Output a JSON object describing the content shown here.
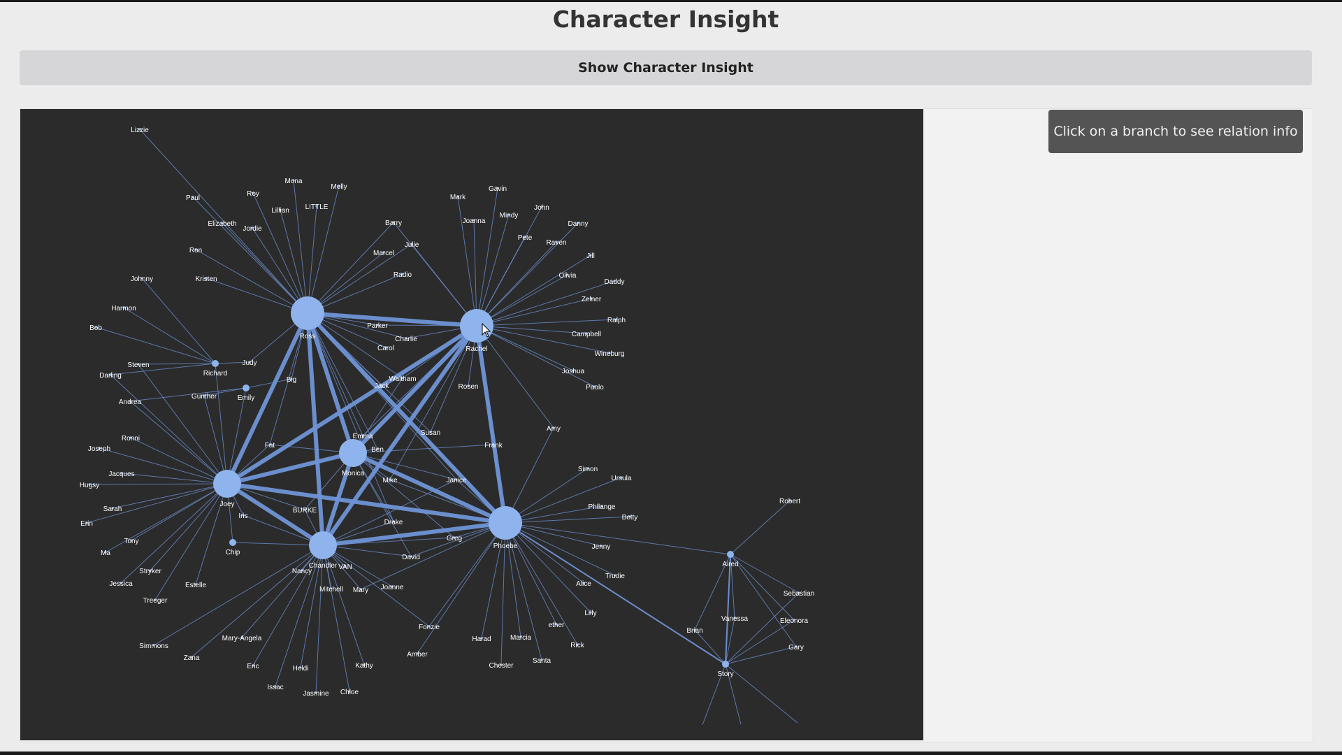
{
  "page": {
    "title": "Character Insight",
    "button_label": "Show Character Insight",
    "tooltip_text": "Click on a branch to see relation info"
  },
  "colors": {
    "background": "#ececec",
    "graph_background": "#2b2b2b",
    "node": "#8fb3ec",
    "edge": "#6f93d6",
    "label": "#ffffff"
  },
  "graph": {
    "nodes": [
      {
        "id": "Ross",
        "weight": 5
      },
      {
        "id": "Rachel",
        "weight": 5
      },
      {
        "id": "Monica",
        "weight": 4
      },
      {
        "id": "Joey",
        "weight": 4
      },
      {
        "id": "Chandler",
        "weight": 4
      },
      {
        "id": "Phoebe",
        "weight": 5
      },
      {
        "id": "Richard",
        "weight": 1
      },
      {
        "id": "Emily",
        "weight": 1
      },
      {
        "id": "Chip",
        "weight": 1
      },
      {
        "id": "Aired",
        "weight": 1
      },
      {
        "id": "Story",
        "weight": 1
      },
      {
        "id": "Lizzie"
      },
      {
        "id": "Paul"
      },
      {
        "id": "Roy"
      },
      {
        "id": "Mona"
      },
      {
        "id": "Molly"
      },
      {
        "id": "Lillian"
      },
      {
        "id": "LITTLE"
      },
      {
        "id": "Elizabeth"
      },
      {
        "id": "Jordie"
      },
      {
        "id": "Ron"
      },
      {
        "id": "Kristen"
      },
      {
        "id": "Johnny"
      },
      {
        "id": "Harmon"
      },
      {
        "id": "Bob"
      },
      {
        "id": "Steven"
      },
      {
        "id": "Darling"
      },
      {
        "id": "Judy"
      },
      {
        "id": "Big"
      },
      {
        "id": "Gunther"
      },
      {
        "id": "Andrea"
      },
      {
        "id": "Barry"
      },
      {
        "id": "Julie"
      },
      {
        "id": "Marcel"
      },
      {
        "id": "Radio"
      },
      {
        "id": "Parker"
      },
      {
        "id": "Charlie"
      },
      {
        "id": "Carol"
      },
      {
        "id": "Waltham"
      },
      {
        "id": "Jack"
      },
      {
        "id": "Mark"
      },
      {
        "id": "Gavin"
      },
      {
        "id": "Joanna"
      },
      {
        "id": "Mindy"
      },
      {
        "id": "John"
      },
      {
        "id": "Danny"
      },
      {
        "id": "Pete"
      },
      {
        "id": "Raven"
      },
      {
        "id": "Jill"
      },
      {
        "id": "Olivia"
      },
      {
        "id": "Daddy"
      },
      {
        "id": "Zelner"
      },
      {
        "id": "Ralph"
      },
      {
        "id": "Campbell"
      },
      {
        "id": "Wineburg"
      },
      {
        "id": "Joshua"
      },
      {
        "id": "Paolo"
      },
      {
        "id": "Rosen"
      },
      {
        "id": "Amy"
      },
      {
        "id": "Fat"
      },
      {
        "id": "Emma"
      },
      {
        "id": "Ben"
      },
      {
        "id": "Susan"
      },
      {
        "id": "Frank"
      },
      {
        "id": "Mike"
      },
      {
        "id": "Janice"
      },
      {
        "id": "Ronni"
      },
      {
        "id": "Joseph"
      },
      {
        "id": "Jacques"
      },
      {
        "id": "Hugsy"
      },
      {
        "id": "Sarah"
      },
      {
        "id": "Erin"
      },
      {
        "id": "Tony"
      },
      {
        "id": "Ma"
      },
      {
        "id": "Iris"
      },
      {
        "id": "BURKE"
      },
      {
        "id": "Drake"
      },
      {
        "id": "Greg"
      },
      {
        "id": "David"
      },
      {
        "id": "Stryker"
      },
      {
        "id": "Jessica"
      },
      {
        "id": "Estelle"
      },
      {
        "id": "Treeger"
      },
      {
        "id": "Nancy"
      },
      {
        "id": "VAN"
      },
      {
        "id": "Mitchell"
      },
      {
        "id": "Mary"
      },
      {
        "id": "Joanne"
      },
      {
        "id": "Simmons"
      },
      {
        "id": "Zana"
      },
      {
        "id": "Mary-Angela"
      },
      {
        "id": "Eric"
      },
      {
        "id": "Heldi"
      },
      {
        "id": "Kathy"
      },
      {
        "id": "Issac"
      },
      {
        "id": "Jasmine"
      },
      {
        "id": "Chloe"
      },
      {
        "id": "Fonzie"
      },
      {
        "id": "Amber"
      },
      {
        "id": "Harad"
      },
      {
        "id": "Marcia"
      },
      {
        "id": "Chester"
      },
      {
        "id": "Santa"
      },
      {
        "id": "ether"
      },
      {
        "id": "Rick"
      },
      {
        "id": "Lilly"
      },
      {
        "id": "Alice"
      },
      {
        "id": "Trudie"
      },
      {
        "id": "Jenny"
      },
      {
        "id": "Simon"
      },
      {
        "id": "Ursula"
      },
      {
        "id": "Phllange"
      },
      {
        "id": "Betty"
      },
      {
        "id": "Robert"
      },
      {
        "id": "Sebastian"
      },
      {
        "id": "Vanessa"
      },
      {
        "id": "Eleonora"
      },
      {
        "id": "Brian"
      },
      {
        "id": "Gary"
      }
    ],
    "strong_edges": [
      [
        "Ross",
        "Rachel"
      ],
      [
        "Ross",
        "Monica"
      ],
      [
        "Ross",
        "Joey"
      ],
      [
        "Ross",
        "Chandler"
      ],
      [
        "Ross",
        "Phoebe"
      ],
      [
        "Rachel",
        "Monica"
      ],
      [
        "Rachel",
        "Joey"
      ],
      [
        "Rachel",
        "Chandler"
      ],
      [
        "Rachel",
        "Phoebe"
      ],
      [
        "Monica",
        "Joey"
      ],
      [
        "Monica",
        "Chandler"
      ],
      [
        "Monica",
        "Phoebe"
      ],
      [
        "Joey",
        "Chandler"
      ],
      [
        "Joey",
        "Phoebe"
      ],
      [
        "Chandler",
        "Phoebe"
      ],
      [
        "Phoebe",
        "Story"
      ],
      [
        "Aired",
        "Story"
      ]
    ]
  }
}
